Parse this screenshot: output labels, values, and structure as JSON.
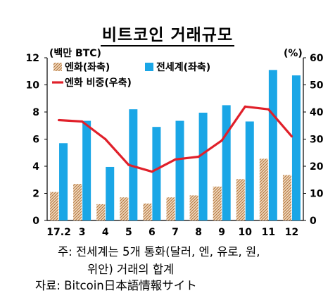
{
  "chart_data": {
    "type": "bar",
    "title": "비트코인 거래규모",
    "left_axis_unit": "(백만 BTC)",
    "right_axis_unit": "(%)",
    "categories": [
      "17.2",
      "3",
      "4",
      "5",
      "6",
      "7",
      "8",
      "9",
      "10",
      "11",
      "12"
    ],
    "left_ylim": [
      0,
      12
    ],
    "left_yticks": [
      0,
      2,
      4,
      6,
      8,
      10,
      12
    ],
    "right_ylim": [
      0,
      60
    ],
    "right_yticks": [
      0,
      10,
      20,
      30,
      40,
      50,
      60
    ],
    "series": [
      {
        "name": "엔화(좌축)",
        "kind": "bar",
        "axis": "left",
        "color": "#c68a52",
        "values": [
          2.1,
          2.7,
          1.2,
          1.7,
          1.25,
          1.7,
          1.85,
          2.5,
          3.05,
          4.55,
          3.35
        ]
      },
      {
        "name": "전세계(좌축)",
        "kind": "bar",
        "axis": "left",
        "color": "#1aa6e6",
        "values": [
          5.7,
          7.35,
          3.95,
          8.2,
          6.9,
          7.35,
          7.95,
          8.5,
          7.3,
          11.1,
          10.7
        ]
      },
      {
        "name": "엔화 비중(우축)",
        "kind": "line",
        "axis": "right",
        "color": "#e0202a",
        "values": [
          37,
          36.5,
          30,
          20.5,
          18,
          22.5,
          23.5,
          29.5,
          42,
          41,
          31
        ]
      }
    ],
    "grid": false,
    "legend_position": "top-left"
  },
  "notes": {
    "line1": "주: 전세계는 5개 통화(달러, 엔, 유로, 원,",
    "line2": "위안) 거래의 합계",
    "source": "자료: Bitcoin日本語情報サイト"
  }
}
